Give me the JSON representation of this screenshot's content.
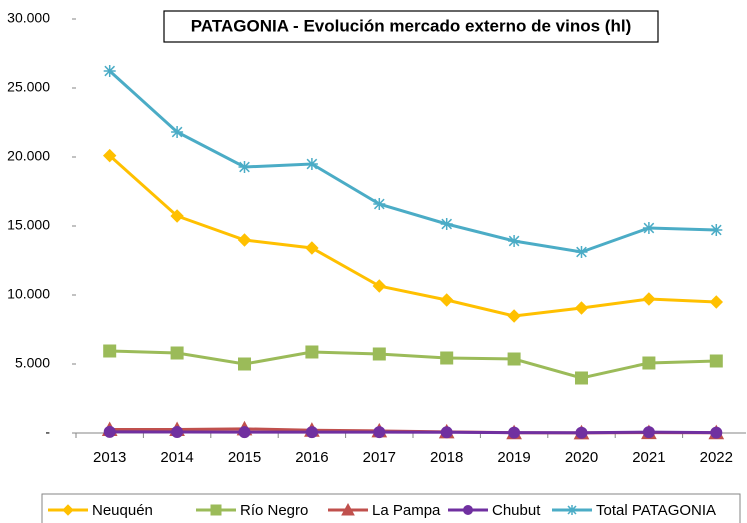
{
  "chart_data": {
    "type": "line",
    "title": "PATAGONIA - Evolución mercado externo de vinos (hl)",
    "categories": [
      "2013",
      "2014",
      "2015",
      "2016",
      "2017",
      "2018",
      "2019",
      "2020",
      "2021",
      "2022"
    ],
    "series": [
      {
        "name": "Neuquén",
        "color": "#FFC000",
        "marker": "diamond",
        "values": [
          20100,
          15725,
          13986,
          13406,
          10652,
          9638,
          8478,
          9058,
          9710,
          9493
        ]
      },
      {
        "name": "Río Negro",
        "color": "#9BBB59",
        "marker": "square",
        "values": [
          5942,
          5797,
          5000,
          5870,
          5725,
          5435,
          5362,
          3986,
          5072,
          5217
        ]
      },
      {
        "name": "La Pampa",
        "color": "#C0504D",
        "marker": "triangle",
        "values": [
          250,
          250,
          300,
          200,
          150,
          80,
          20,
          10,
          30,
          20
        ]
      },
      {
        "name": "Chubut",
        "color": "#7030A0",
        "marker": "circle",
        "values": [
          80,
          70,
          60,
          60,
          60,
          50,
          30,
          20,
          60,
          30
        ]
      },
      {
        "name": "Total PATAGONIA",
        "color": "#4BACC6",
        "marker": "star",
        "values": [
          26232,
          21812,
          19275,
          19493,
          16594,
          15145,
          13913,
          13116,
          14855,
          14710
        ]
      }
    ],
    "ylim": [
      0,
      30000
    ],
    "yticks": [
      {
        "value": 0,
        "label": "-"
      },
      {
        "value": 5000,
        "label": "5.000"
      },
      {
        "value": 10000,
        "label": "10.000"
      },
      {
        "value": 15000,
        "label": "15.000"
      },
      {
        "value": 20000,
        "label": "20.000"
      },
      {
        "value": 25000,
        "label": "25.000"
      },
      {
        "value": 30000,
        "label": "30.000"
      }
    ],
    "legend": "bottom"
  }
}
